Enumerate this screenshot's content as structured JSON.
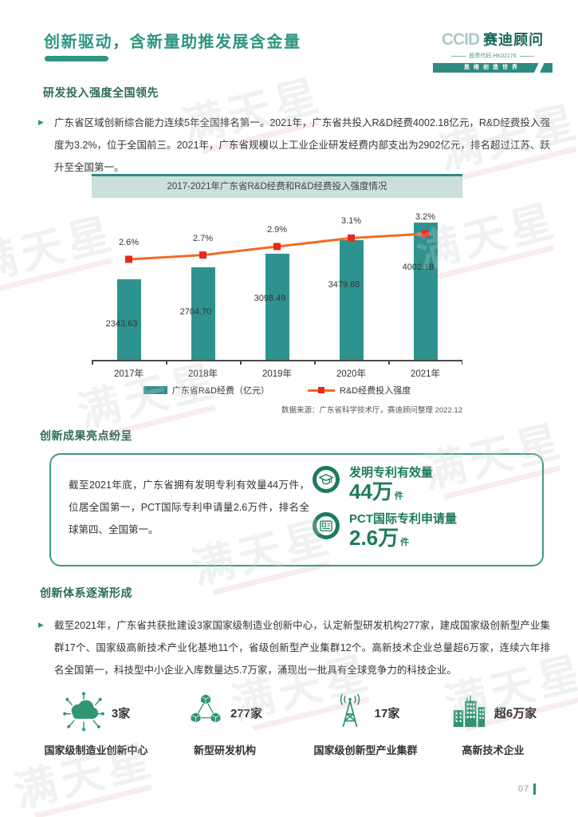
{
  "header": {
    "title": "创新驱动，含新量助推发展含金量",
    "logo": {
      "ccid": "CCID",
      "name": "赛迪顾问",
      "stock_line": "股票代码:HK02176",
      "slogan": "思维创造世界"
    }
  },
  "section1": {
    "heading": "研发投入强度全国领先",
    "bullet": "▶",
    "paragraph": "广东省区域创新综合能力连续5年全国排名第一。2021年，广东省共投入R&D经费4002.18亿元，R&D经费投入强度为3.2%，位于全国前三。2021年，广东省规模以上工业企业研发经费内部支出为2902亿元，排名超过江苏、跃升至全国第一。"
  },
  "chart_data": {
    "type": "bar",
    "title": "2017-2021年广东省R&D经费和R&D经费投入强度情况",
    "categories": [
      "2017年",
      "2018年",
      "2019年",
      "2020年",
      "2021年"
    ],
    "series": [
      {
        "name": "广东省R&D经费（亿元）",
        "type": "bar",
        "values": [
          2343.63,
          2704.7,
          3098.49,
          3479.88,
          4002.18
        ]
      },
      {
        "name": "R&D经费投入强度",
        "type": "line",
        "unit": "%",
        "values": [
          2.6,
          2.7,
          2.9,
          3.1,
          3.2
        ]
      }
    ],
    "value_labels": true,
    "legend_position": "bottom",
    "grid": false,
    "source": "数据来源：广东省科学技术厅，赛迪顾问整理 2022.12",
    "colors": {
      "bar": "#2E938E",
      "line": "#F26A21",
      "marker": "#E8281E",
      "title_bg": "#CBDFDC",
      "title_border": "#2E8B7F"
    }
  },
  "section2": {
    "heading": "创新成果亮点纷呈",
    "box_text": "截至2021年底，广东省拥有发明专利有效量44万件，位居全国第一，PCT国际专利申请量2.6万件，排名全球第四、全国第一。",
    "stats": [
      {
        "icon": "graduation-cap-icon",
        "label": "发明专利有效量",
        "value": "44万",
        "unit": "件"
      },
      {
        "icon": "certificate-icon",
        "label": "PCT国际专利申请量",
        "value": "2.6万",
        "unit": "件"
      }
    ]
  },
  "section3": {
    "heading": "创新体系逐渐形成",
    "bullet": "▶",
    "paragraph": "截至2021年，广东省共获批建设3家国家级制造业创新中心，认定新型研发机构277家，建成国家级创新型产业集群17个、国家级高新技术产业化基地11个，省级创新型产业集群12个。高新技术企业总量超6万家，连续六年排名全国第一，科技型中小企业入库数量达5.7万家，涌现出一批具有全球竞争力的科技企业。",
    "items": [
      {
        "icon": "cloud-network-icon",
        "count": "3家",
        "label": "国家级制造业创新中心"
      },
      {
        "icon": "cubes-icon",
        "count": "277家",
        "label": "新型研发机构"
      },
      {
        "icon": "antenna-icon",
        "count": "17家",
        "label": "国家级创新型产业集群"
      },
      {
        "icon": "buildings-icon",
        "count": "超6万家",
        "label": "高新技术企业"
      }
    ]
  },
  "footer": {
    "page_number": "07"
  },
  "watermark": {
    "text": "满天星"
  },
  "theme": {
    "accent": "#2E9583",
    "dark_green": "#1E7A5F",
    "icon_green": "#2E9575"
  }
}
